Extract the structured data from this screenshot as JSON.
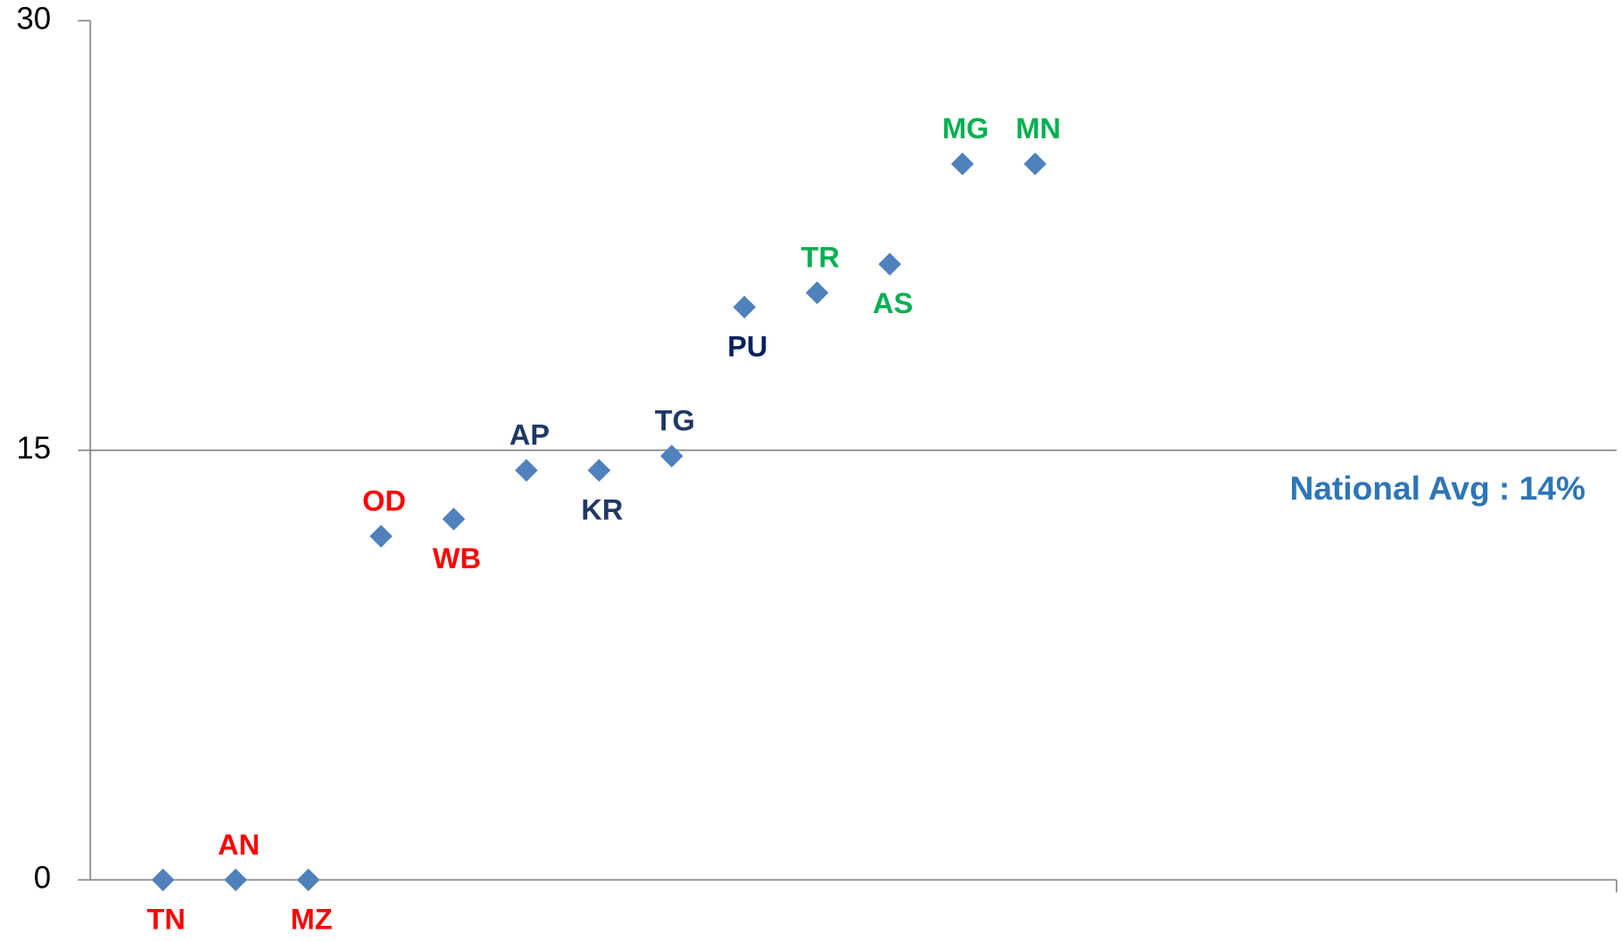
{
  "chart_data": {
    "type": "scatter",
    "x": [
      1,
      2,
      3,
      4,
      5,
      6,
      7,
      8,
      9,
      10,
      11,
      12,
      13
    ],
    "values": [
      0,
      0,
      0,
      12,
      12.6,
      14.3,
      14.3,
      14.8,
      20,
      20.5,
      21.5,
      25,
      25
    ],
    "point_labels": [
      "TN",
      "AN",
      "MZ",
      "OD",
      "WB",
      "AP",
      "KR",
      "TG",
      "PU",
      "TR",
      "AS",
      "MG",
      "MN"
    ],
    "label_colors": [
      "#ff0000",
      "#ff0000",
      "#ff0000",
      "#ff0000",
      "#ff0000",
      "#1f3864",
      "#1f3864",
      "#1f3864",
      "#002060",
      "#00b050",
      "#00b050",
      "#00b050",
      "#00b050"
    ],
    "label_positions": [
      "below",
      "above",
      "below",
      "above",
      "below",
      "above",
      "below",
      "above",
      "below",
      "above",
      "below",
      "above",
      "above"
    ],
    "color": "#4f81bd",
    "xlim": [
      0,
      21
    ],
    "ylim": [
      0,
      30
    ],
    "yticks": [
      0,
      15,
      30
    ],
    "annotation": "National Avg : 14%",
    "annotation_color": "#2e75b6"
  }
}
